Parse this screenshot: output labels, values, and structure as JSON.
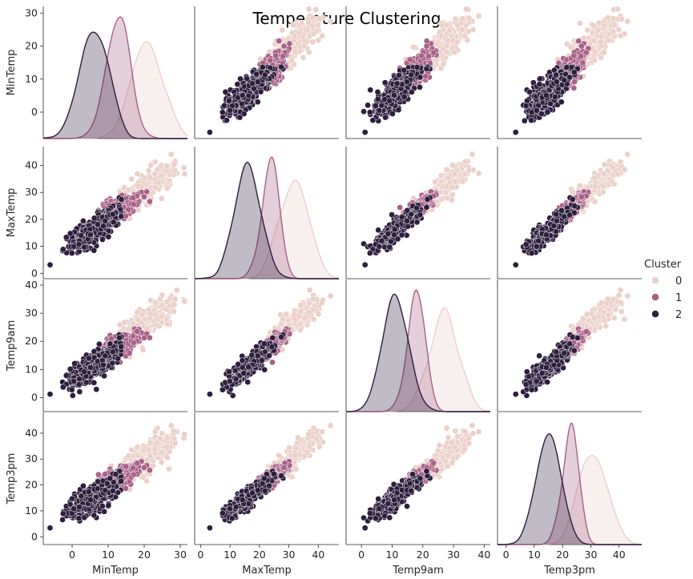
{
  "chart_data": {
    "type": "scatter",
    "kind": "pairplot",
    "title": "Temperature Clustering",
    "variables": [
      "MinTemp",
      "MaxTemp",
      "Temp9am",
      "Temp3pm"
    ],
    "legend": {
      "title": "Cluster",
      "position": "right",
      "entries": [
        {
          "label": "0",
          "color": "#ebd0c9"
        },
        {
          "label": "1",
          "color": "#a86187"
        },
        {
          "label": "2",
          "color": "#2d1e3e"
        }
      ]
    },
    "axes": {
      "MinTemp": {
        "range": [
          -8,
          32
        ],
        "ticks": [
          0,
          10,
          20,
          30
        ]
      },
      "MaxTemp": {
        "range": [
          -2,
          47
        ],
        "ticks": [
          0,
          10,
          20,
          30,
          40
        ]
      },
      "Temp9am": {
        "range": [
          -5,
          42
        ],
        "ticks": [
          0,
          10,
          20,
          30,
          40
        ]
      },
      "Temp3pm": {
        "range": [
          -3,
          48
        ],
        "ticks": [
          0,
          10,
          20,
          30,
          40
        ]
      }
    },
    "clusters": [
      {
        "name": "0",
        "color": "#ebd0c9",
        "means": [
          21,
          32,
          27,
          31
        ],
        "stds": [
          3.8,
          4.5,
          4.2,
          4.5
        ]
      },
      {
        "name": "1",
        "color": "#a86187",
        "means": [
          13,
          24,
          18,
          23
        ],
        "stds": [
          3.2,
          2.8,
          2.7,
          2.8
        ]
      },
      {
        "name": "2",
        "color": "#2d1e3e",
        "means": [
          6,
          16,
          11,
          15
        ],
        "stds": [
          3.5,
          4,
          3.8,
          4
        ]
      }
    ],
    "grid": false
  }
}
